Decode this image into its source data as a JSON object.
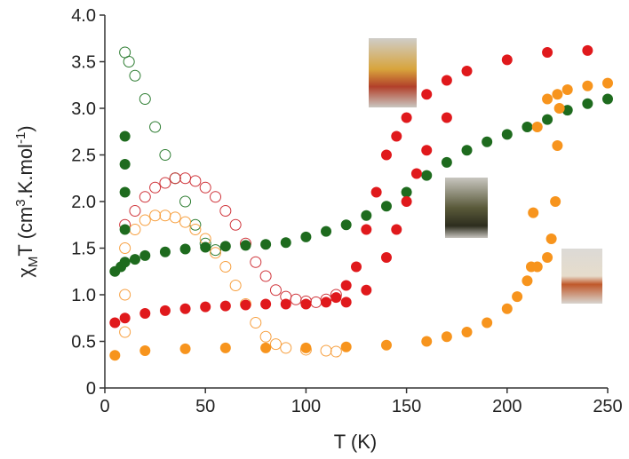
{
  "chart_data": {
    "type": "scatter",
    "x_label": "T (K)",
    "y_label_parts": [
      "χ",
      "M",
      "T (cm",
      "3",
      ".K.mol",
      "-1",
      ")"
    ],
    "xlim": [
      0,
      250
    ],
    "xticks": [
      0,
      50,
      100,
      150,
      200,
      250
    ],
    "ylim": [
      0,
      4
    ],
    "yticks": [
      0,
      0.5,
      {
        "value": 1,
        "label": "1.0"
      },
      1.5,
      {
        "value": 2,
        "label": "2.0"
      },
      2.5,
      {
        "value": 3,
        "label": "3.0"
      },
      3.5,
      {
        "value": 4,
        "label": "4.0"
      }
    ],
    "series": [
      {
        "color": "#2e7d32",
        "marker": "open",
        "x": [
          10,
          12,
          15,
          20,
          25,
          30,
          35,
          40,
          45,
          50,
          55
        ],
        "values": [
          3.6,
          3.5,
          3.35,
          3.1,
          2.8,
          2.5,
          2.25,
          2.0,
          1.75,
          1.55,
          1.48
        ]
      },
      {
        "color": "#d0363c",
        "marker": "open",
        "x": [
          10,
          15,
          20,
          25,
          30,
          35,
          40,
          45,
          50,
          55,
          60,
          65,
          70,
          75,
          80,
          85,
          90,
          95,
          100,
          105,
          110,
          115
        ],
        "values": [
          1.75,
          1.9,
          2.05,
          2.15,
          2.2,
          2.25,
          2.25,
          2.22,
          2.15,
          2.05,
          1.9,
          1.75,
          1.55,
          1.35,
          1.2,
          1.05,
          0.98,
          0.95,
          0.93,
          0.92,
          0.95,
          1.0
        ]
      },
      {
        "color": "#f7a040",
        "marker": "open",
        "x": [
          10,
          10,
          10,
          15,
          20,
          25,
          30,
          35,
          40,
          45,
          50,
          55,
          60,
          65,
          70,
          75,
          80,
          85,
          90,
          100,
          110,
          115
        ],
        "values": [
          0.6,
          1.0,
          1.5,
          1.7,
          1.8,
          1.85,
          1.85,
          1.83,
          1.78,
          1.7,
          1.6,
          1.45,
          1.3,
          1.1,
          0.9,
          0.7,
          0.55,
          0.47,
          0.43,
          0.41,
          0.4,
          0.39
        ]
      },
      {
        "color": "#1e6b1e",
        "marker": "filled",
        "x": [
          5,
          8,
          10,
          10,
          10,
          10,
          10,
          15,
          20,
          30,
          40,
          50,
          60,
          70,
          80,
          90,
          100,
          110,
          120,
          130,
          140,
          150,
          160,
          170,
          180,
          190,
          200,
          210,
          220,
          230,
          240,
          250
        ],
        "values": [
          1.25,
          1.3,
          1.35,
          1.7,
          2.1,
          2.4,
          2.7,
          1.38,
          1.42,
          1.46,
          1.49,
          1.51,
          1.52,
          1.53,
          1.54,
          1.56,
          1.62,
          1.68,
          1.75,
          1.85,
          1.95,
          2.1,
          2.28,
          2.42,
          2.55,
          2.64,
          2.72,
          2.8,
          2.88,
          2.98,
          3.05,
          3.1
        ]
      },
      {
        "color": "#e0191c",
        "marker": "filled",
        "x": [
          5,
          10,
          20,
          30,
          40,
          50,
          60,
          70,
          80,
          90,
          100,
          110,
          115,
          120,
          125,
          130,
          135,
          140,
          145,
          150,
          160,
          170,
          180,
          200,
          220,
          240,
          120,
          130,
          140,
          145,
          150,
          155,
          160,
          170
        ],
        "values": [
          0.7,
          0.75,
          0.8,
          0.83,
          0.85,
          0.87,
          0.88,
          0.89,
          0.9,
          0.9,
          0.9,
          0.92,
          0.97,
          1.1,
          1.3,
          1.7,
          2.1,
          2.5,
          2.7,
          2.9,
          3.15,
          3.3,
          3.4,
          3.52,
          3.6,
          3.62,
          0.92,
          1.05,
          1.4,
          1.7,
          2.0,
          2.3,
          2.55,
          2.9
        ]
      },
      {
        "color": "#f7941d",
        "marker": "filled",
        "x": [
          5,
          20,
          40,
          60,
          80,
          100,
          120,
          140,
          160,
          170,
          180,
          190,
          200,
          205,
          210,
          212,
          213,
          215,
          220,
          225,
          230,
          240,
          250,
          215,
          220,
          222,
          224,
          225,
          226
        ],
        "values": [
          0.35,
          0.4,
          0.42,
          0.43,
          0.43,
          0.43,
          0.44,
          0.46,
          0.5,
          0.55,
          0.6,
          0.7,
          0.85,
          0.98,
          1.15,
          1.3,
          1.88,
          2.8,
          3.1,
          3.15,
          3.2,
          3.24,
          3.27,
          1.3,
          1.4,
          1.6,
          2.0,
          2.6,
          3.0
        ]
      }
    ]
  }
}
